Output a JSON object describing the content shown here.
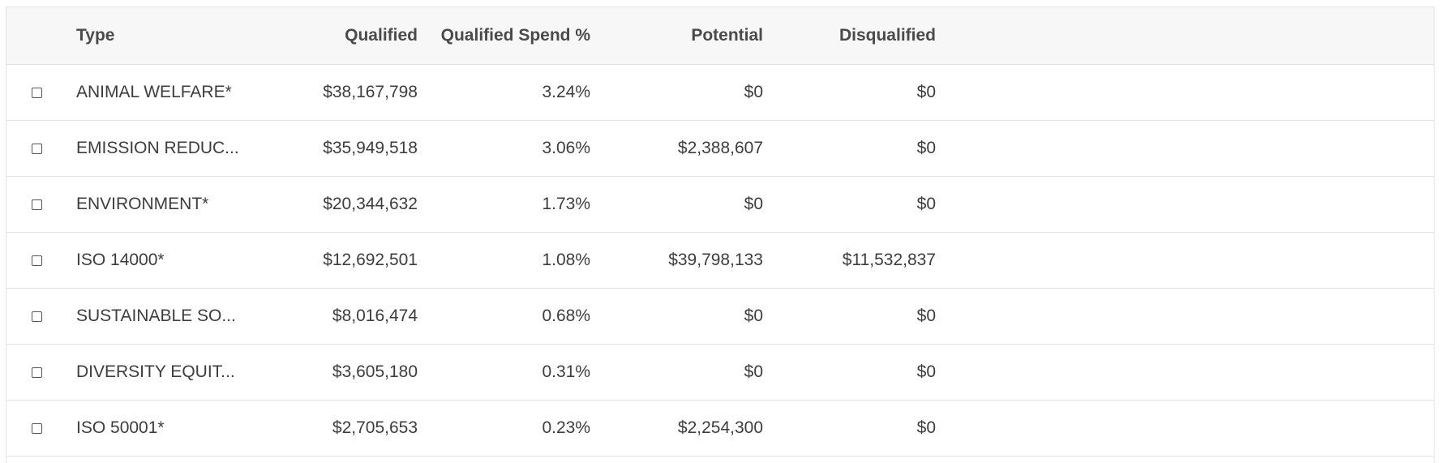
{
  "table": {
    "headers": {
      "type": "Type",
      "qualified": "Qualified",
      "qualified_spend_pct": "Qualified Spend %",
      "potential": "Potential",
      "disqualified": "Disqualified"
    },
    "rows": [
      {
        "type": "ANIMAL WELFARE*",
        "qualified": "$38,167,798",
        "qualified_spend_pct": "3.24%",
        "potential": "$0",
        "disqualified": "$0"
      },
      {
        "type": "EMISSION REDUC...",
        "qualified": "$35,949,518",
        "qualified_spend_pct": "3.06%",
        "potential": "$2,388,607",
        "disqualified": "$0"
      },
      {
        "type": "ENVIRONMENT*",
        "qualified": "$20,344,632",
        "qualified_spend_pct": "1.73%",
        "potential": "$0",
        "disqualified": "$0"
      },
      {
        "type": "ISO 14000*",
        "qualified": "$12,692,501",
        "qualified_spend_pct": "1.08%",
        "potential": "$39,798,133",
        "disqualified": "$11,532,837"
      },
      {
        "type": "SUSTAINABLE SO...",
        "qualified": "$8,016,474",
        "qualified_spend_pct": "0.68%",
        "potential": "$0",
        "disqualified": "$0"
      },
      {
        "type": "DIVERSITY EQUIT...",
        "qualified": "$3,605,180",
        "qualified_spend_pct": "0.31%",
        "potential": "$0",
        "disqualified": "$0"
      },
      {
        "type": "ISO 50001*",
        "qualified": "$2,705,653",
        "qualified_spend_pct": "0.23%",
        "potential": "$2,254,300",
        "disqualified": "$0"
      }
    ]
  }
}
